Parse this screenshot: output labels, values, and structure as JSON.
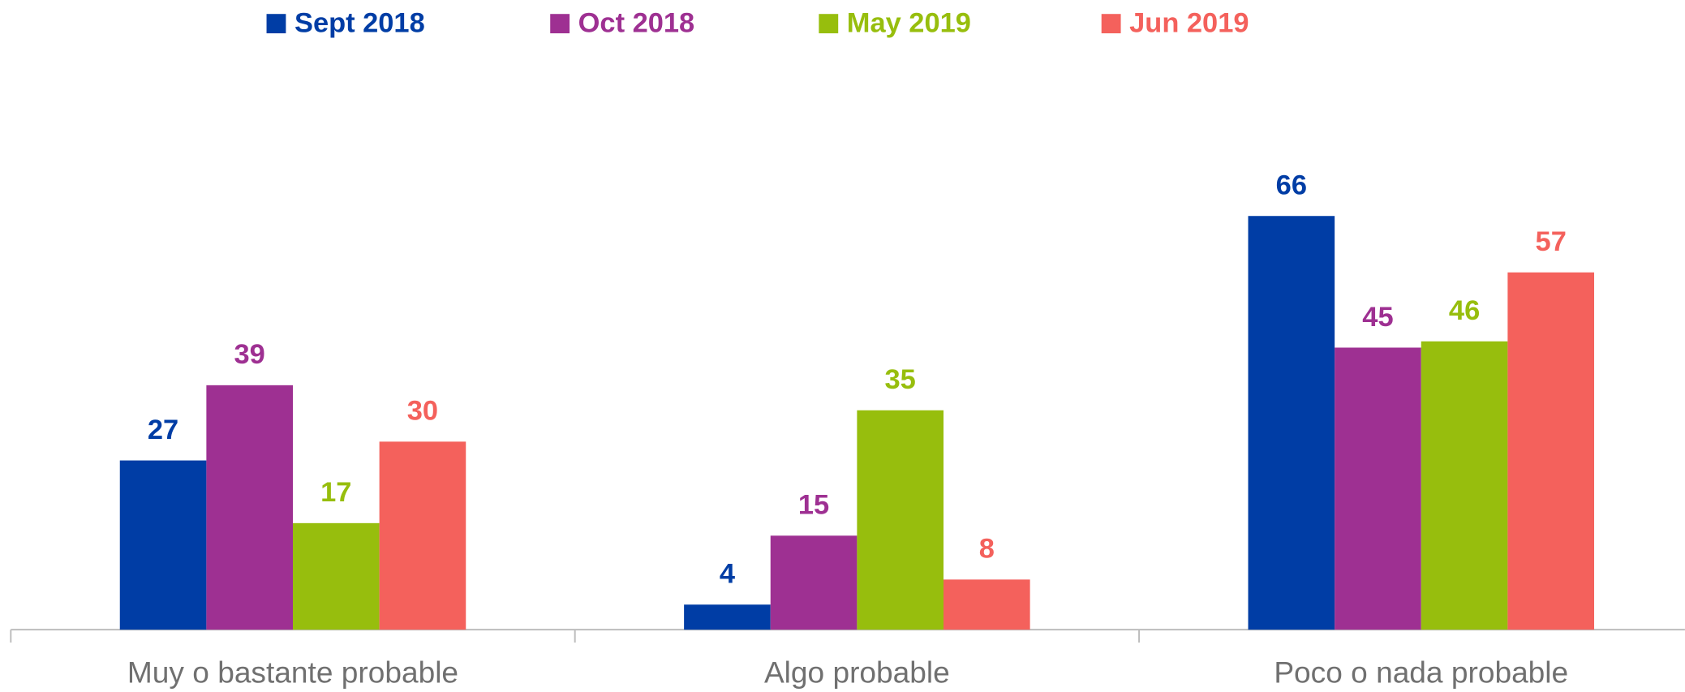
{
  "chart_data": {
    "type": "bar",
    "categories": [
      "Muy o bastante probable",
      "Algo probable",
      "Poco o nada probable"
    ],
    "series": [
      {
        "name": "Sept 2018",
        "color": "#003DA5",
        "values": [
          27,
          4,
          66
        ]
      },
      {
        "name": "Oct 2018",
        "color": "#9E3092",
        "values": [
          39,
          15,
          45
        ]
      },
      {
        "name": "May 2019",
        "color": "#97BE0D",
        "values": [
          17,
          35,
          46
        ]
      },
      {
        "name": "Jun 2019",
        "color": "#F4615C",
        "values": [
          30,
          8,
          57
        ]
      }
    ],
    "legend": "top"
  }
}
